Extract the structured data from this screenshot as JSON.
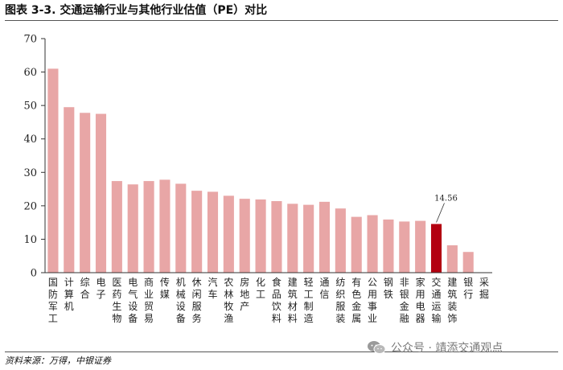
{
  "header": {
    "title": "图表 3-3. 交通运输行业与其他行业估值（PE）对比"
  },
  "footer": {
    "source": "资料来源：万得，中银证券"
  },
  "watermark": {
    "text": "公众号 · 靖添交通观点",
    "icon": "wechat-icon"
  },
  "colors": {
    "bar": "#e8a6a6",
    "highlight": "#b30010",
    "axis": "#333333"
  },
  "chart_data": {
    "type": "bar",
    "title": "",
    "xlabel": "",
    "ylabel": "",
    "ylim": [
      0,
      70
    ],
    "yticks": [
      0,
      10,
      20,
      30,
      40,
      50,
      60,
      70
    ],
    "grid": false,
    "legend": "none",
    "categories": [
      "国防军工",
      "计算机",
      "综合",
      "电子",
      "医药生物",
      "电气设备",
      "商业贸易",
      "传媒",
      "机械设备",
      "休闲服务",
      "汽车",
      "农林牧渔",
      "房地产",
      "化工",
      "食品饮料",
      "建筑材料",
      "轻工制造",
      "通信",
      "纺织服装",
      "有色金属",
      "公用事业",
      "钢铁",
      "非银金融",
      "家用电器",
      "交通运输",
      "建筑装饰",
      "银行",
      "采掘"
    ],
    "values": [
      61.0,
      49.5,
      47.8,
      47.5,
      27.4,
      26.4,
      27.4,
      27.8,
      26.6,
      24.5,
      24.2,
      23.0,
      22.1,
      21.9,
      21.4,
      20.6,
      20.3,
      21.2,
      19.2,
      16.7,
      17.2,
      15.9,
      15.3,
      15.5,
      14.56,
      8.2,
      6.2,
      0.0
    ],
    "highlight_category": "交通运输",
    "annotations": [
      {
        "category": "交通运输",
        "text": "14.56"
      }
    ]
  }
}
